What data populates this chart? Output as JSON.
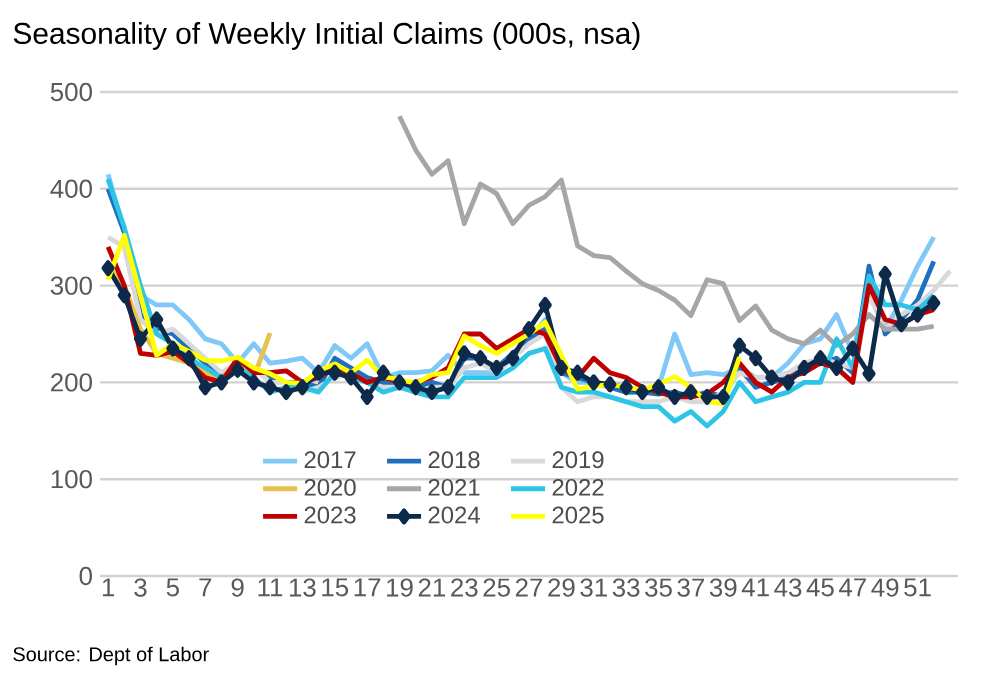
{
  "chart_data": {
    "type": "line",
    "title": "Seasonality of Weekly Initial Claims (000s, nsa)",
    "annotations": [
      "Source: Dept of Labor"
    ],
    "categories": [
      "1",
      null,
      "3",
      null,
      "5",
      null,
      "7",
      null,
      "9",
      null,
      "11",
      null,
      "13",
      null,
      "15",
      null,
      "17",
      null,
      "19",
      null,
      "21",
      null,
      "23",
      null,
      "25",
      null,
      "27",
      null,
      "29",
      null,
      "31",
      null,
      "33",
      null,
      "35",
      null,
      "37",
      null,
      "39",
      null,
      "41",
      null,
      "43",
      null,
      "45",
      null,
      "47",
      null,
      "49",
      null,
      "51",
      null,
      null
    ],
    "ylim": [
      0,
      500
    ],
    "yticks": [
      0,
      100,
      200,
      300,
      400,
      500
    ],
    "grid": "y",
    "legend": "bottom",
    "line_style": "solid",
    "series": [
      {
        "name": "2017",
        "color": "#7fc8f8",
        "values": [
          415,
          355,
          290,
          280,
          280,
          265,
          245,
          240,
          220,
          240,
          220,
          222,
          225,
          210,
          238,
          225,
          240,
          205,
          210,
          210,
          212,
          228,
          210,
          210,
          210,
          225,
          245,
          265,
          210,
          200,
          200,
          195,
          190,
          190,
          195,
          250,
          208,
          210,
          208,
          215,
          205,
          205,
          220,
          240,
          245,
          270,
          230,
          300,
          255,
          285,
          320,
          350,
          null
        ]
      },
      {
        "name": "2018",
        "color": "#1f6fbf",
        "values": [
          400,
          355,
          270,
          255,
          250,
          235,
          220,
          210,
          215,
          215,
          205,
          200,
          200,
          195,
          225,
          215,
          205,
          200,
          195,
          195,
          200,
          195,
          225,
          225,
          215,
          230,
          245,
          255,
          210,
          205,
          200,
          195,
          190,
          190,
          188,
          190,
          185,
          190,
          185,
          215,
          195,
          200,
          205,
          215,
          220,
          225,
          210,
          320,
          250,
          265,
          285,
          325,
          null
        ]
      },
      {
        "name": "2019",
        "color": "#d9d9d9",
        "values": [
          350,
          340,
          265,
          250,
          255,
          240,
          225,
          210,
          220,
          215,
          200,
          200,
          190,
          195,
          205,
          210,
          200,
          195,
          195,
          190,
          195,
          195,
          215,
          220,
          210,
          225,
          240,
          250,
          195,
          180,
          185,
          185,
          180,
          180,
          180,
          185,
          180,
          180,
          190,
          210,
          205,
          205,
          210,
          220,
          225,
          220,
          215,
          290,
          255,
          270,
          280,
          295,
          315
        ]
      },
      {
        "name": "2020",
        "color": "#e6c34f",
        "values": [
          320,
          300,
          255,
          230,
          225,
          220,
          210,
          205,
          220,
          205,
          251,
          null,
          null,
          null,
          null,
          null,
          null,
          null,
          null,
          null,
          null,
          null,
          null,
          null,
          null,
          null,
          null,
          null,
          null,
          null,
          null,
          null,
          null,
          null,
          null,
          null,
          null,
          null,
          null,
          null,
          null,
          null,
          null,
          null,
          null,
          null,
          null,
          null,
          null,
          null,
          null,
          null,
          null
        ]
      },
      {
        "name": "2021",
        "color": "#a6a6a6",
        "values": [
          null,
          null,
          null,
          null,
          null,
          null,
          null,
          null,
          null,
          null,
          null,
          null,
          null,
          null,
          null,
          null,
          null,
          null,
          475,
          440,
          415,
          429,
          364,
          405,
          395,
          364,
          383,
          392,
          409,
          341,
          331,
          329,
          315,
          302,
          295,
          285,
          269,
          306,
          302,
          264,
          279,
          254,
          245,
          240,
          254,
          238,
          250,
          270,
          255,
          255,
          255,
          258,
          null
        ]
      },
      {
        "name": "2022",
        "color": "#2ec4e6",
        "values": [
          410,
          360,
          300,
          250,
          240,
          225,
          215,
          205,
          215,
          205,
          190,
          195,
          195,
          190,
          210,
          205,
          200,
          190,
          195,
          190,
          185,
          185,
          205,
          205,
          205,
          215,
          230,
          235,
          195,
          190,
          190,
          185,
          180,
          175,
          175,
          160,
          170,
          155,
          170,
          200,
          180,
          185,
          190,
          200,
          200,
          245,
          215,
          310,
          280,
          280,
          275,
          290,
          null
        ]
      },
      {
        "name": "2023",
        "color": "#c00000",
        "values": [
          340,
          300,
          230,
          228,
          232,
          220,
          205,
          200,
          225,
          210,
          210,
          212,
          200,
          205,
          215,
          210,
          200,
          205,
          200,
          200,
          205,
          215,
          250,
          250,
          235,
          245,
          255,
          250,
          215,
          205,
          225,
          210,
          205,
          195,
          190,
          185,
          185,
          188,
          200,
          220,
          200,
          190,
          205,
          210,
          220,
          215,
          200,
          300,
          265,
          260,
          270,
          275,
          null
        ]
      },
      {
        "name": "2024",
        "color": "#0d2a4a",
        "marker": "diamond",
        "values": [
          318,
          290,
          245,
          265,
          235,
          225,
          195,
          200,
          213,
          200,
          195,
          190,
          195,
          210,
          210,
          205,
          185,
          210,
          200,
          195,
          190,
          195,
          230,
          225,
          215,
          225,
          255,
          280,
          215,
          210,
          200,
          198,
          195,
          190,
          195,
          185,
          190,
          185,
          185,
          238,
          225,
          205,
          200,
          215,
          225,
          215,
          235,
          209,
          312,
          260,
          270,
          282,
          null
        ]
      },
      {
        "name": "2025",
        "color": "#ffff00",
        "values": [
          306,
          352,
          290,
          228,
          240,
          232,
          223,
          222,
          226,
          215,
          209,
          200,
          199,
          212,
          219,
          210,
          223,
          206,
          203,
          199,
          208,
          210,
          248,
          238,
          230,
          240,
          250,
          262,
          228,
          193,
          196,
          198,
          195,
          192,
          198,
          206,
          195,
          180,
          178,
          226,
          null,
          null,
          null,
          null,
          null,
          null,
          null,
          null,
          null,
          null,
          null,
          null,
          null
        ]
      }
    ]
  }
}
